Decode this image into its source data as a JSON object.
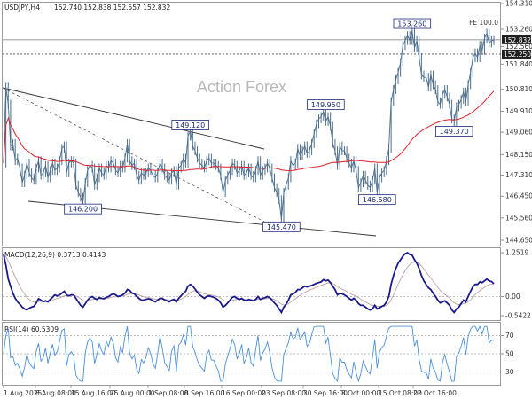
{
  "chart_data": {
    "type": "line",
    "instrument": "USDJPY,H4",
    "header_ohlc": "152.740 152.838 152.557 152.832",
    "watermark": "Action Forex",
    "colors": {
      "price": "#4a6d8c",
      "ma": "#e0202a",
      "macd": "#1a1a8c",
      "signal": "#c0a0a0",
      "rsi": "#4a90d9"
    },
    "price_axis": {
      "ticks": [
        "154.310",
        "153.260",
        "152.560",
        "151.840",
        "150.810",
        "149.910",
        "149.060",
        "148.150",
        "147.310",
        "146.450",
        "145.560",
        "144.650"
      ]
    },
    "fe_label": "FE 100.0",
    "current_price": "152.832",
    "fe_level": "152.250",
    "x_ticks": [
      "1 Aug 2025",
      "8 Aug 08:00",
      "15 Aug 16:00",
      "25 Aug 00:00",
      "1 Sep 08:00",
      "8 Sep 16:00",
      "16 Sep 00:00",
      "23 Sep 08:00",
      "30 Sep 16:00",
      "8 Oct 00:00",
      "15 Oct 08:00",
      "22 Oct 16:00"
    ],
    "annotations": [
      {
        "label": "153.260",
        "bar": 175,
        "price": 153.26
      },
      {
        "label": "149.950",
        "bar": 138,
        "price": 149.95
      },
      {
        "label": "149.120",
        "bar": 80,
        "price": 149.12
      },
      {
        "label": "149.370",
        "bar": 193,
        "price": 149.37
      },
      {
        "label": "146.580",
        "bar": 160,
        "price": 146.58
      },
      {
        "label": "146.200",
        "bar": 34,
        "price": 146.2
      },
      {
        "label": "145.470",
        "bar": 119,
        "price": 145.47
      }
    ],
    "close": [
      147.8,
      150.9,
      150.2,
      148.5,
      148.6,
      147.9,
      148.0,
      147.6,
      147.0,
      147.3,
      147.8,
      147.4,
      147.2,
      147.1,
      147.6,
      147.9,
      147.3,
      147.4,
      147.7,
      147.2,
      147.5,
      147.8,
      147.5,
      147.6,
      147.9,
      148.4,
      148.5,
      147.4,
      147.8,
      147.9,
      147.8,
      146.9,
      146.6,
      146.4,
      146.2,
      147.0,
      147.5,
      147.7,
      147.6,
      146.9,
      147.2,
      147.6,
      147.4,
      147.3,
      147.7,
      147.6,
      147.9,
      147.8,
      147.5,
      147.4,
      147.7,
      147.6,
      148.0,
      148.6,
      147.9,
      147.7,
      147.8,
      147.3,
      147.1,
      147.4,
      147.3,
      147.4,
      147.6,
      147.5,
      147.3,
      147.2,
      147.4,
      147.8,
      147.6,
      147.3,
      147.2,
      147.1,
      147.4,
      147.5,
      146.9,
      147.6,
      147.7,
      148.0,
      147.8,
      148.9,
      149.1,
      148.5,
      148.3,
      148.0,
      147.8,
      147.7,
      147.6,
      147.9,
      148.0,
      147.8,
      147.8,
      147.7,
      147.6,
      147.3,
      146.6,
      147.1,
      147.3,
      147.5,
      147.8,
      147.7,
      147.4,
      147.5,
      147.7,
      147.3,
      147.4,
      147.6,
      147.3,
      147.2,
      147.5,
      147.9,
      147.3,
      147.5,
      147.6,
      147.8,
      147.6,
      147.2,
      146.8,
      146.6,
      146.3,
      145.5,
      146.6,
      146.9,
      147.2,
      147.9,
      147.7,
      147.8,
      148.4,
      148.1,
      148.3,
      148.5,
      148.2,
      148.3,
      148.6,
      149.0,
      149.4,
      149.6,
      149.7,
      149.9,
      149.5,
      149.7,
      149.3,
      148.6,
      148.3,
      147.7,
      148.5,
      148.3,
      148.3,
      148.0,
      147.8,
      147.6,
      147.9,
      147.5,
      146.8,
      147.0,
      147.3,
      147.1,
      146.9,
      146.8,
      147.1,
      147.6,
      146.6,
      147.2,
      147.4,
      147.5,
      147.9,
      148.4,
      150.3,
      150.8,
      151.2,
      151.5,
      151.9,
      152.6,
      152.8,
      153.0,
      152.8,
      153.2,
      152.5,
      152.8,
      152.1,
      151.4,
      151.3,
      151.3,
      150.9,
      151.4,
      151.0,
      150.8,
      150.3,
      150.2,
      150.6,
      150.8,
      150.5,
      150.2,
      149.6,
      149.5,
      150.1,
      150.2,
      150.4,
      150.7,
      150.3,
      151.0,
      151.5,
      152.1,
      152.3,
      152.1,
      152.6,
      152.4,
      152.9,
      153.1,
      152.7,
      152.8,
      152.8
    ],
    "ma": {
      "name": "",
      "period": 55
    },
    "macd": {
      "label": "MACD(12,26,9) 0.3713 0.4143",
      "ticks": [
        "1.2519",
        "0.00",
        "-0.5422"
      ],
      "range": [
        -0.5422,
        1.2519
      ],
      "line": [
        1.2,
        0.9,
        0.5,
        0.3,
        0.1,
        -0.05,
        -0.15,
        -0.22,
        -0.3,
        -0.35,
        -0.38,
        -0.33,
        -0.3,
        -0.28,
        -0.18,
        -0.06,
        -0.1,
        -0.15,
        -0.12,
        -0.15,
        -0.08,
        -0.02,
        0.05,
        0.02,
        0.05,
        0.1,
        0.15,
        0.05,
        0.02,
        0.05,
        0.05,
        -0.05,
        -0.15,
        -0.25,
        -0.3,
        -0.2,
        -0.1,
        -0.03,
        0.0,
        -0.05,
        -0.08,
        -0.03,
        -0.05,
        -0.06,
        -0.02,
        0.0,
        0.05,
        0.08,
        0.05,
        0.0,
        0.02,
        0.05,
        0.1,
        0.2,
        0.18,
        0.1,
        0.08,
        0.0,
        -0.05,
        -0.1,
        -0.1,
        -0.08,
        -0.06,
        -0.08,
        -0.12,
        -0.15,
        -0.1,
        -0.05,
        -0.05,
        -0.1,
        -0.12,
        -0.15,
        -0.1,
        -0.08,
        -0.15,
        -0.05,
        0.02,
        0.1,
        0.15,
        0.3,
        0.35,
        0.3,
        0.22,
        0.12,
        0.05,
        0.0,
        -0.05,
        0.0,
        0.02,
        0.0,
        -0.02,
        -0.05,
        -0.1,
        -0.18,
        -0.3,
        -0.25,
        -0.18,
        -0.1,
        -0.02,
        0.0,
        -0.05,
        -0.08,
        -0.05,
        -0.1,
        -0.12,
        -0.08,
        -0.1,
        -0.12,
        -0.08,
        0.0,
        -0.08,
        -0.05,
        -0.03,
        0.0,
        -0.03,
        -0.1,
        -0.18,
        -0.25,
        -0.35,
        -0.45,
        -0.3,
        -0.22,
        -0.1,
        0.05,
        0.08,
        0.12,
        0.2,
        0.2,
        0.25,
        0.3,
        0.28,
        0.3,
        0.32,
        0.35,
        0.38,
        0.4,
        0.42,
        0.48,
        0.45,
        0.47,
        0.4,
        0.3,
        0.2,
        0.05,
        0.1,
        0.08,
        0.05,
        0.0,
        -0.05,
        -0.1,
        -0.05,
        -0.1,
        -0.2,
        -0.25,
        -0.25,
        -0.3,
        -0.35,
        -0.38,
        -0.35,
        -0.25,
        -0.35,
        -0.32,
        -0.28,
        -0.25,
        -0.15,
        0.0,
        0.35,
        0.6,
        0.8,
        0.95,
        1.05,
        1.15,
        1.22,
        1.25,
        1.2,
        1.18,
        1.05,
        0.95,
        0.8,
        0.6,
        0.45,
        0.35,
        0.25,
        0.2,
        0.1,
        0.0,
        -0.1,
        -0.18,
        -0.15,
        -0.12,
        -0.18,
        -0.25,
        -0.38,
        -0.45,
        -0.35,
        -0.3,
        -0.2,
        -0.1,
        -0.15,
        0.0,
        0.15,
        0.28,
        0.35,
        0.35,
        0.42,
        0.4,
        0.45,
        0.5,
        0.45,
        0.43,
        0.37
      ]
    },
    "rsi": {
      "label": "RSI(14) 60.5309",
      "ticks": [
        "70",
        "50",
        "30"
      ],
      "range": [
        18,
        82
      ]
    }
  }
}
